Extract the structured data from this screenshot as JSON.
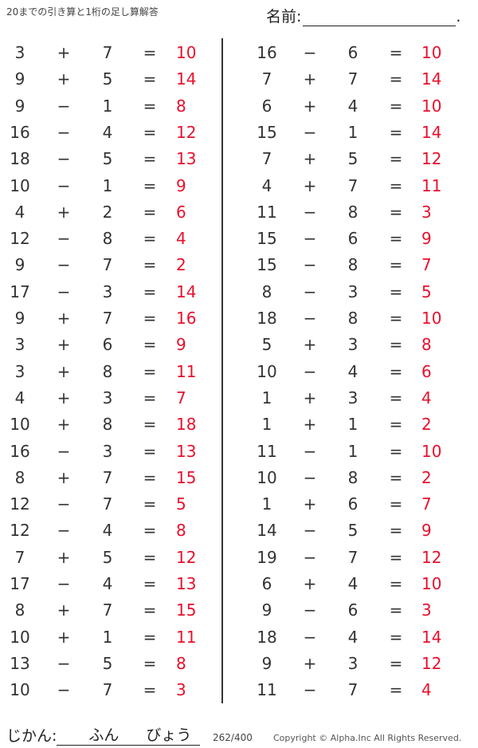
{
  "header": {
    "title": "20までの引き算と1桁の足し算解答",
    "name_label": "名前:",
    "name_end": "."
  },
  "colors": {
    "answer": "#e8102d",
    "text": "#333333"
  },
  "left_problems": [
    [
      "3",
      "+",
      "7",
      "=",
      "10"
    ],
    [
      "9",
      "+",
      "5",
      "=",
      "14"
    ],
    [
      "9",
      "−",
      "1",
      "=",
      "8"
    ],
    [
      "16",
      "−",
      "4",
      "=",
      "12"
    ],
    [
      "18",
      "−",
      "5",
      "=",
      "13"
    ],
    [
      "10",
      "−",
      "1",
      "=",
      "9"
    ],
    [
      "4",
      "+",
      "2",
      "=",
      "6"
    ],
    [
      "12",
      "−",
      "8",
      "=",
      "4"
    ],
    [
      "9",
      "−",
      "7",
      "=",
      "2"
    ],
    [
      "17",
      "−",
      "3",
      "=",
      "14"
    ],
    [
      "9",
      "+",
      "7",
      "=",
      "16"
    ],
    [
      "3",
      "+",
      "6",
      "=",
      "9"
    ],
    [
      "3",
      "+",
      "8",
      "=",
      "11"
    ],
    [
      "4",
      "+",
      "3",
      "=",
      "7"
    ],
    [
      "10",
      "+",
      "8",
      "=",
      "18"
    ],
    [
      "16",
      "−",
      "3",
      "=",
      "13"
    ],
    [
      "8",
      "+",
      "7",
      "=",
      "15"
    ],
    [
      "12",
      "−",
      "7",
      "=",
      "5"
    ],
    [
      "12",
      "−",
      "4",
      "=",
      "8"
    ],
    [
      "7",
      "+",
      "5",
      "=",
      "12"
    ],
    [
      "17",
      "−",
      "4",
      "=",
      "13"
    ],
    [
      "8",
      "+",
      "7",
      "=",
      "15"
    ],
    [
      "10",
      "+",
      "1",
      "=",
      "11"
    ],
    [
      "13",
      "−",
      "5",
      "=",
      "8"
    ],
    [
      "10",
      "−",
      "7",
      "=",
      "3"
    ]
  ],
  "right_problems": [
    [
      "16",
      "−",
      "6",
      "=",
      "10"
    ],
    [
      "7",
      "+",
      "7",
      "=",
      "14"
    ],
    [
      "6",
      "+",
      "4",
      "=",
      "10"
    ],
    [
      "15",
      "−",
      "1",
      "=",
      "14"
    ],
    [
      "7",
      "+",
      "5",
      "=",
      "12"
    ],
    [
      "4",
      "+",
      "7",
      "=",
      "11"
    ],
    [
      "11",
      "−",
      "8",
      "=",
      "3"
    ],
    [
      "15",
      "−",
      "6",
      "=",
      "9"
    ],
    [
      "15",
      "−",
      "8",
      "=",
      "7"
    ],
    [
      "8",
      "−",
      "3",
      "=",
      "5"
    ],
    [
      "18",
      "−",
      "8",
      "=",
      "10"
    ],
    [
      "5",
      "+",
      "3",
      "=",
      "8"
    ],
    [
      "10",
      "−",
      "4",
      "=",
      "6"
    ],
    [
      "1",
      "+",
      "3",
      "=",
      "4"
    ],
    [
      "1",
      "+",
      "1",
      "=",
      "2"
    ],
    [
      "11",
      "−",
      "1",
      "=",
      "10"
    ],
    [
      "10",
      "−",
      "8",
      "=",
      "2"
    ],
    [
      "1",
      "+",
      "6",
      "=",
      "7"
    ],
    [
      "14",
      "−",
      "5",
      "=",
      "9"
    ],
    [
      "19",
      "−",
      "7",
      "=",
      "12"
    ],
    [
      "6",
      "+",
      "4",
      "=",
      "10"
    ],
    [
      "9",
      "−",
      "6",
      "=",
      "3"
    ],
    [
      "18",
      "−",
      "4",
      "=",
      "14"
    ],
    [
      "9",
      "+",
      "3",
      "=",
      "12"
    ],
    [
      "11",
      "−",
      "7",
      "=",
      "4"
    ]
  ],
  "footer": {
    "time_label": "じかん:",
    "minutes": "ふん",
    "seconds": "びょう",
    "page": "262/400",
    "copyright": "Copyright ©  Alpha.Inc All Rights Reserved."
  }
}
